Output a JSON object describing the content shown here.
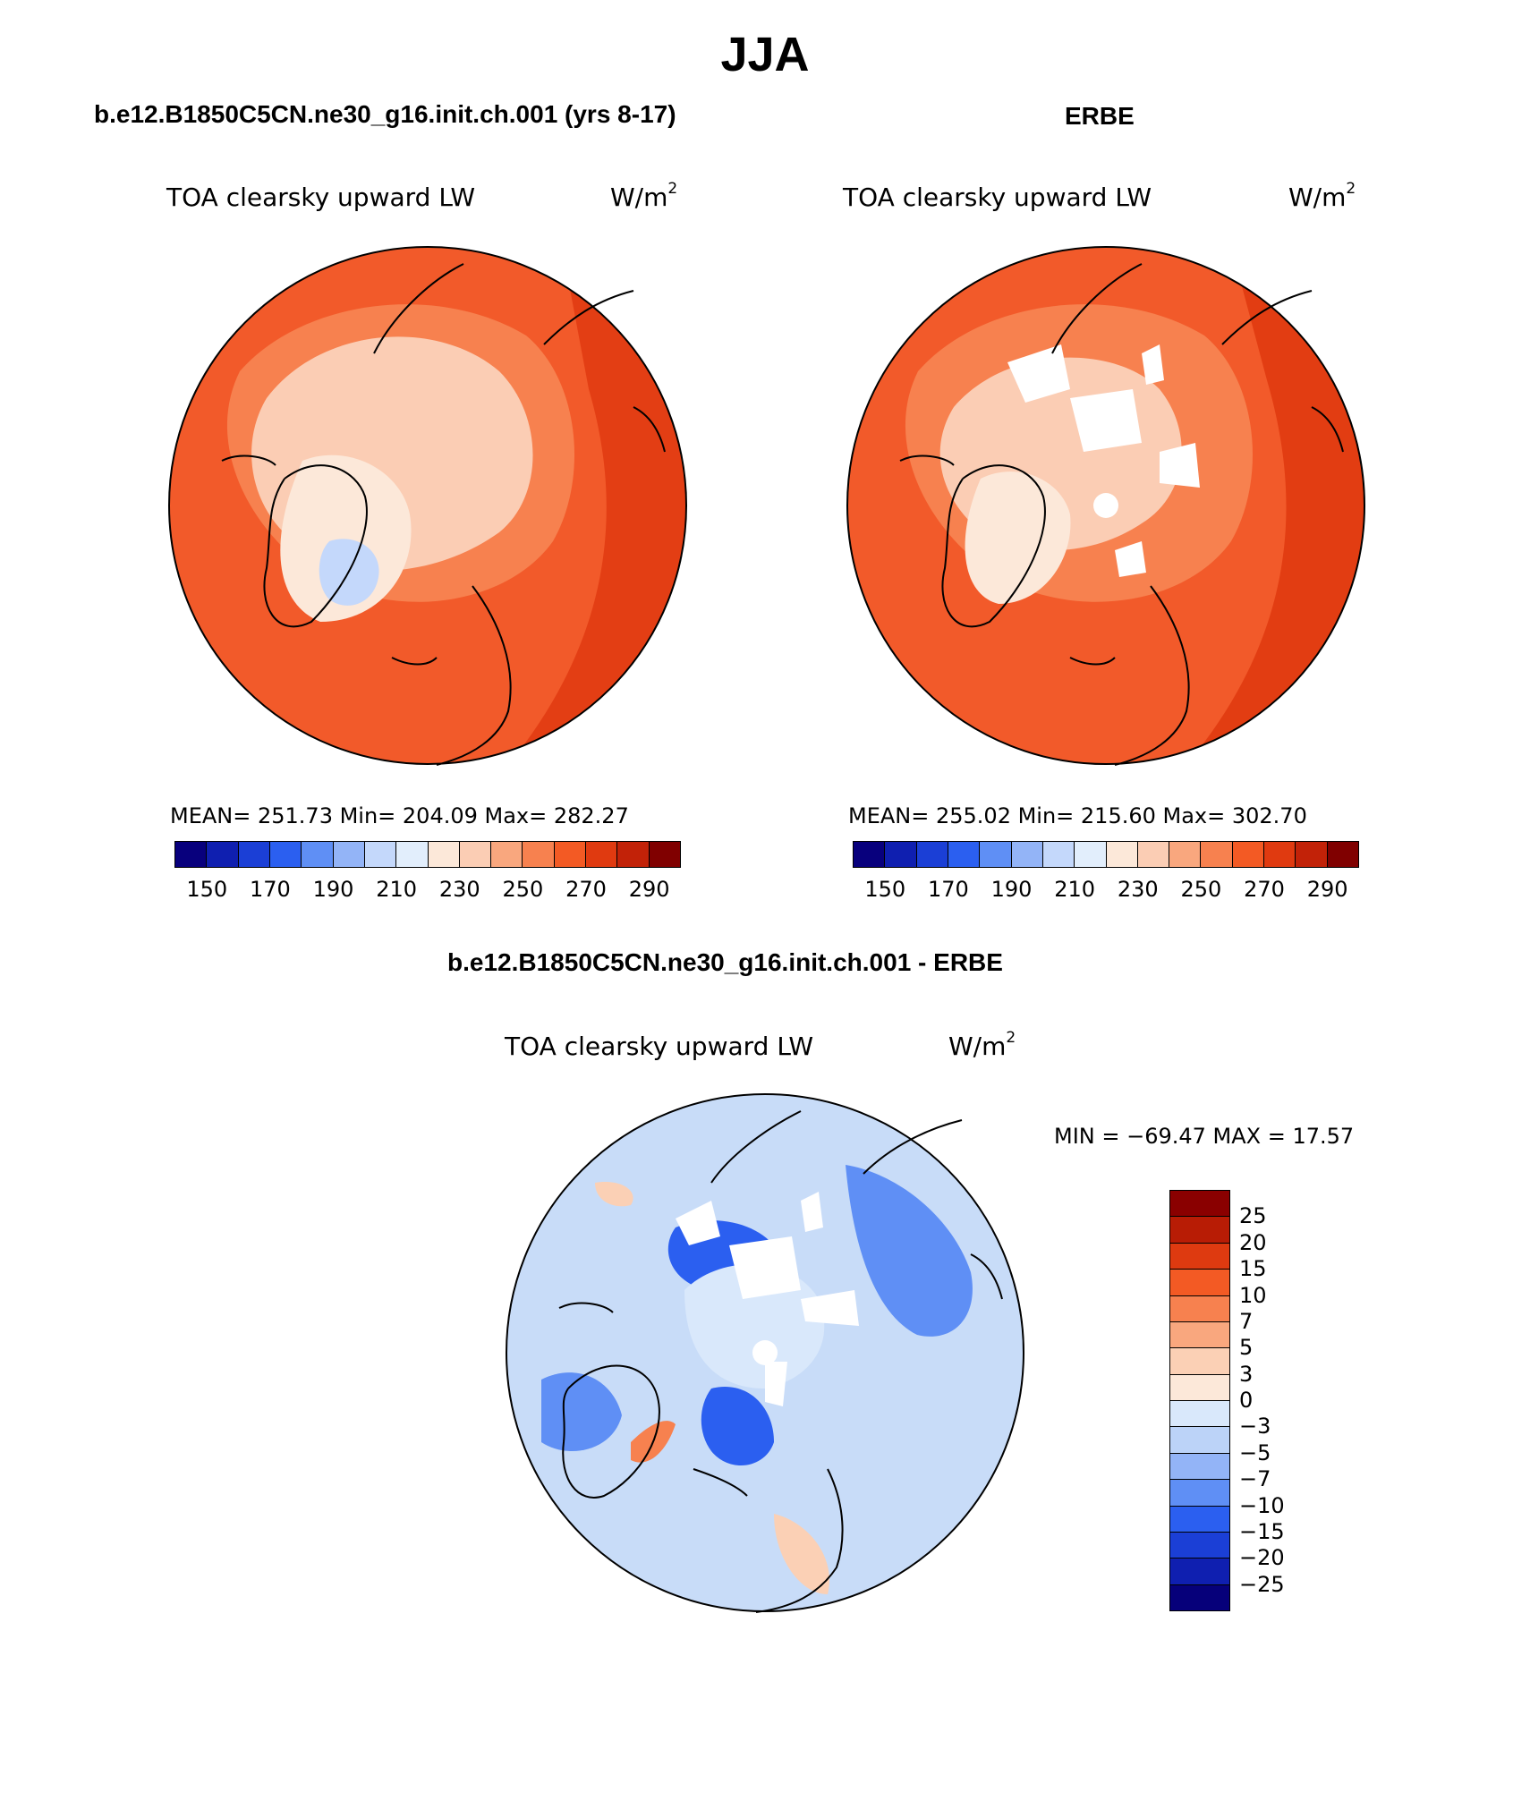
{
  "page_title": "JJA",
  "panels": [
    {
      "title": "b.e12.B1850C5CN.ne30_g16.init.ch.001 (yrs 8-17)",
      "variable": "TOA clearsky upward LW",
      "unit": "W/m",
      "unit_exp": "2",
      "stats": "MEAN= 251.73   Min= 204.09   Max= 282.27",
      "colorbar_ticks": [
        "150",
        "170",
        "190",
        "210",
        "230",
        "250",
        "270",
        "290"
      ]
    },
    {
      "title": "ERBE",
      "variable": "TOA clearsky upward LW",
      "unit": "W/m",
      "unit_exp": "2",
      "stats": "MEAN= 255.02   Min= 215.60   Max= 302.70",
      "colorbar_ticks": [
        "150",
        "170",
        "190",
        "210",
        "230",
        "250",
        "270",
        "290"
      ]
    },
    {
      "title": "b.e12.B1850C5CN.ne30_g16.init.ch.001 - ERBE",
      "variable": "TOA clearsky upward LW",
      "unit": "W/m",
      "unit_exp": "2",
      "stats": "MIN = −69.47 MAX =   17.57",
      "colorbar_ticks": [
        "25",
        "20",
        "15",
        "10",
        "7",
        "5",
        "3",
        "0",
        "−3",
        "−5",
        "−7",
        "−10",
        "−15",
        "−20",
        "−25"
      ]
    }
  ],
  "colors": {
    "abs_scale": [
      "#08007d",
      "#0f1fb0",
      "#1b3fd6",
      "#2b5ff0",
      "#5f8ff5",
      "#93b4f7",
      "#c4d8fb",
      "#e2eefc",
      "#fce8d9",
      "#fbcdb4",
      "#f9a77e",
      "#f7814f",
      "#f35a24",
      "#e03a10",
      "#c22208",
      "#800000"
    ],
    "diff_scale": [
      "#8a0000",
      "#b81c05",
      "#de3a10",
      "#f35a24",
      "#f7814f",
      "#f9a77e",
      "#fbd0b5",
      "#fce8d9",
      "#d9e8fb",
      "#bcd3f8",
      "#93b4f7",
      "#5f8ff5",
      "#2b5ff0",
      "#1b3fd6",
      "#0f1fb0",
      "#06007a"
    ],
    "map_base_model": "#f25a2a",
    "map_base_obs": "#f25a2a",
    "map_base_diff": "#c8dcf8",
    "coastline": "#000000"
  },
  "chart_data": [
    {
      "type": "heatmap",
      "projection": "north-polar-stereographic",
      "title": "b.e12.B1850C5CN.ne30_g16.init.ch.001 (yrs 8-17)",
      "variable": "TOA clearsky upward LW",
      "units": "W/m2",
      "mean": 251.73,
      "min": 204.09,
      "max": 282.27,
      "contour_levels": [
        150,
        160,
        170,
        180,
        190,
        200,
        210,
        220,
        230,
        240,
        250,
        260,
        270,
        280,
        290
      ]
    },
    {
      "type": "heatmap",
      "projection": "north-polar-stereographic",
      "title": "ERBE",
      "variable": "TOA clearsky upward LW",
      "units": "W/m2",
      "mean": 255.02,
      "min": 215.6,
      "max": 302.7,
      "contour_levels": [
        150,
        160,
        170,
        180,
        190,
        200,
        210,
        220,
        230,
        240,
        250,
        260,
        270,
        280,
        290
      ]
    },
    {
      "type": "heatmap",
      "projection": "north-polar-stereographic",
      "title": "b.e12.B1850C5CN.ne30_g16.init.ch.001 - ERBE",
      "variable": "TOA clearsky upward LW",
      "units": "W/m2",
      "min": -69.47,
      "max": 17.57,
      "contour_levels": [
        -25,
        -20,
        -15,
        -10,
        -7,
        -5,
        -3,
        0,
        3,
        5,
        7,
        10,
        15,
        20,
        25
      ]
    }
  ]
}
